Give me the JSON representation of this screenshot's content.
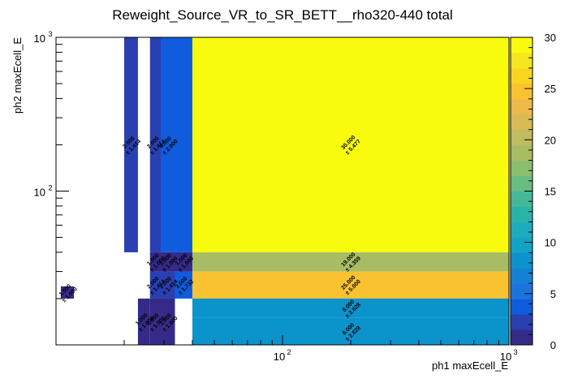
{
  "chart_data": {
    "type": "heatmap",
    "title": "Reweight_Source_VR_to_SR_BETT__rho320-440 total",
    "xlabel": "ph1 maxEcell_E",
    "ylabel": "ph2 maxEcell_E",
    "x_scale": "log",
    "y_scale": "log",
    "xlim": [
      10,
      1000
    ],
    "ylim": [
      10,
      1000
    ],
    "zlim": [
      0,
      30
    ],
    "x_ticks": [
      {
        "base": "10",
        "exp": "2",
        "value": 100
      },
      {
        "base": "10",
        "exp": "3",
        "value": 1000
      }
    ],
    "y_ticks": [
      {
        "base": "10",
        "exp": "2",
        "value": 100
      },
      {
        "base": "10",
        "exp": "3",
        "value": 1000
      }
    ],
    "colorbar_ticks": [
      "0",
      "5",
      "10",
      "15",
      "20",
      "25",
      "30"
    ],
    "colorbar_values": [
      0,
      5,
      10,
      15,
      20,
      25,
      30
    ],
    "palette": [
      "#352a87",
      "#2a3fb0",
      "#0f5cdd",
      "#1b74de",
      "#1481d6",
      "#0b93cc",
      "#13a3c6",
      "#1eacba",
      "#2ab3a7",
      "#46b897",
      "#6abd80",
      "#8cbe70",
      "#a8bd63",
      "#c0bc60",
      "#d9ba55",
      "#edb94b",
      "#f9c231",
      "#f8d520",
      "#f5e61d",
      "#f9fb0e"
    ],
    "cells": [
      {
        "x": [
          10.5,
          12.0
        ],
        "y": [
          20,
          24
        ],
        "value": 1.0,
        "value_label": "1.000",
        "error_label": "± 1.000"
      },
      {
        "x": [
          20.0,
          23.0
        ],
        "y": [
          40,
          1000
        ],
        "value": 2.0,
        "value_label": "2.000",
        "error_label": "± 1.414"
      },
      {
        "x": [
          23.0,
          26.0
        ],
        "y": [
          10,
          20
        ],
        "value": 1.0,
        "value_label": "1.000",
        "error_label": "± 1.000"
      },
      {
        "x": [
          26.0,
          29.0
        ],
        "y": [
          10,
          20
        ],
        "value": 1.0,
        "value_label": "1.000",
        "error_label": "± 1.000"
      },
      {
        "x": [
          26.0,
          29.0
        ],
        "y": [
          20,
          30
        ],
        "value": 2.0,
        "value_label": "2.000",
        "error_label": "± 1.414"
      },
      {
        "x": [
          26.0,
          29.0
        ],
        "y": [
          30,
          40
        ],
        "value": 1.0,
        "value_label": "1.000",
        "error_label": "± 1.000"
      },
      {
        "x": [
          26.0,
          29.0
        ],
        "y": [
          40,
          1000
        ],
        "value": 2.0,
        "value_label": "2.000",
        "error_label": "± 1.414"
      },
      {
        "x": [
          29.0,
          33.5
        ],
        "y": [
          10,
          20
        ],
        "value": 1.0,
        "value_label": "1.000",
        "error_label": "± 1.000"
      },
      {
        "x": [
          29.0,
          33.5
        ],
        "y": [
          20,
          30
        ],
        "value": 2.0,
        "value_label": "2.000",
        "error_label": "± 1.414"
      },
      {
        "x": [
          29.0,
          33.5
        ],
        "y": [
          30,
          40
        ],
        "value": 1.0,
        "value_label": "1.000",
        "error_label": "± 1.000"
      },
      {
        "x": [
          29.0,
          33.5
        ],
        "y": [
          40,
          1000
        ],
        "value": 4.0,
        "value_label": "4.000",
        "error_label": "± 2.000"
      },
      {
        "x": [
          33.5,
          40.0
        ],
        "y": [
          20,
          30
        ],
        "value": 3.0,
        "value_label": "3.000",
        "error_label": "± 1.732"
      },
      {
        "x": [
          33.5,
          40.0
        ],
        "y": [
          30,
          40
        ],
        "value": 1.0,
        "value_label": "1.000",
        "error_label": "± 1.000"
      },
      {
        "x": [
          33.5,
          40.0
        ],
        "y": [
          40,
          1000
        ],
        "value": 4.0,
        "value_label": "",
        "error_label": ""
      },
      {
        "x": [
          40.0,
          1000.0
        ],
        "y": [
          40,
          1000
        ],
        "value": 30.0,
        "value_label": "30.000",
        "error_label": "± 5.477"
      },
      {
        "x": [
          40.0,
          1000.0
        ],
        "y": [
          30,
          40
        ],
        "value": 19.0,
        "value_label": "19.000",
        "error_label": "± 4.359"
      },
      {
        "x": [
          40.0,
          1000.0
        ],
        "y": [
          20,
          30
        ],
        "value": 25.0,
        "value_label": "25.000",
        "error_label": "± 5.000"
      },
      {
        "x": [
          40.0,
          1000.0
        ],
        "y": [
          15,
          20
        ],
        "value": 8.0,
        "value_label": "8.000",
        "error_label": "± 2.828"
      },
      {
        "x": [
          40.0,
          1000.0
        ],
        "y": [
          10,
          15
        ],
        "value": 8.0,
        "value_label": "8.000",
        "error_label": "± 2.828"
      }
    ]
  }
}
